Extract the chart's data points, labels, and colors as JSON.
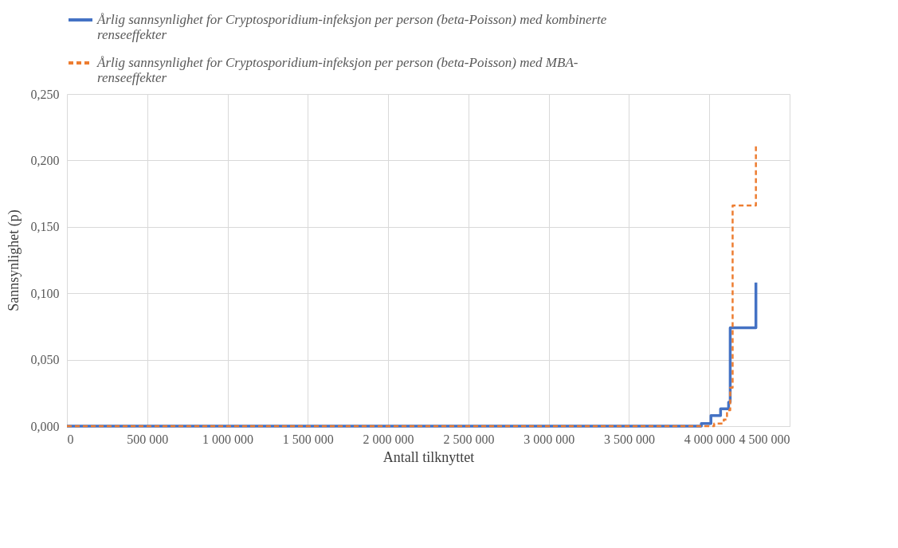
{
  "chart_data": {
    "type": "step",
    "xlabel": "Antall tilknyttet",
    "ylabel": "Sannsynlighet (p)",
    "xlim": [
      0,
      4500000
    ],
    "xticks": [
      {
        "value": 0,
        "label": "0"
      },
      {
        "value": 500000,
        "label": "500 000"
      },
      {
        "value": 1000000,
        "label": "1 000 000"
      },
      {
        "value": 1500000,
        "label": "1 500 000"
      },
      {
        "value": 2000000,
        "label": "2 000 000"
      },
      {
        "value": 2500000,
        "label": "2 500 000"
      },
      {
        "value": 3000000,
        "label": "3 000 000"
      },
      {
        "value": 3500000,
        "label": "3 500 000"
      },
      {
        "value": 4000000,
        "label": "4 000 000"
      },
      {
        "value": 4500000,
        "label": "4 500 000"
      }
    ],
    "ylim": [
      0,
      0.25
    ],
    "yticks": [
      {
        "value": 0,
        "label": "0,000"
      },
      {
        "value": 0.05,
        "label": "0,050"
      },
      {
        "value": 0.1,
        "label": "0,100"
      },
      {
        "value": 0.15,
        "label": "0,150"
      },
      {
        "value": 0.2,
        "label": "0,200"
      },
      {
        "value": 0.25,
        "label": "0,250"
      }
    ],
    "grid": true,
    "legend": "top",
    "series": [
      {
        "name": "Årlig sannsynlighet for Cryptosporidium-infeksjon per person (beta-Poisson) med kombinerte renseeffekter",
        "color": "#4472c4",
        "line_style": "solid",
        "x": [
          0,
          3950000,
          4010000,
          4070000,
          4120000,
          4130000,
          4290000
        ],
        "values": [
          0,
          0.002,
          0.008,
          0.013,
          0.018,
          0.074,
          0.108
        ]
      },
      {
        "name": "Årlig sannsynlighet for Cryptosporidium-infeksjon per person (beta-Poisson) med MBA-renseeffekter",
        "color": "#ed7d31",
        "line_style": "dashed",
        "x": [
          0,
          4030000,
          4090000,
          4110000,
          4130000,
          4145000,
          4290000
        ],
        "values": [
          0,
          0.002,
          0.005,
          0.012,
          0.029,
          0.166,
          0.212
        ]
      }
    ]
  }
}
